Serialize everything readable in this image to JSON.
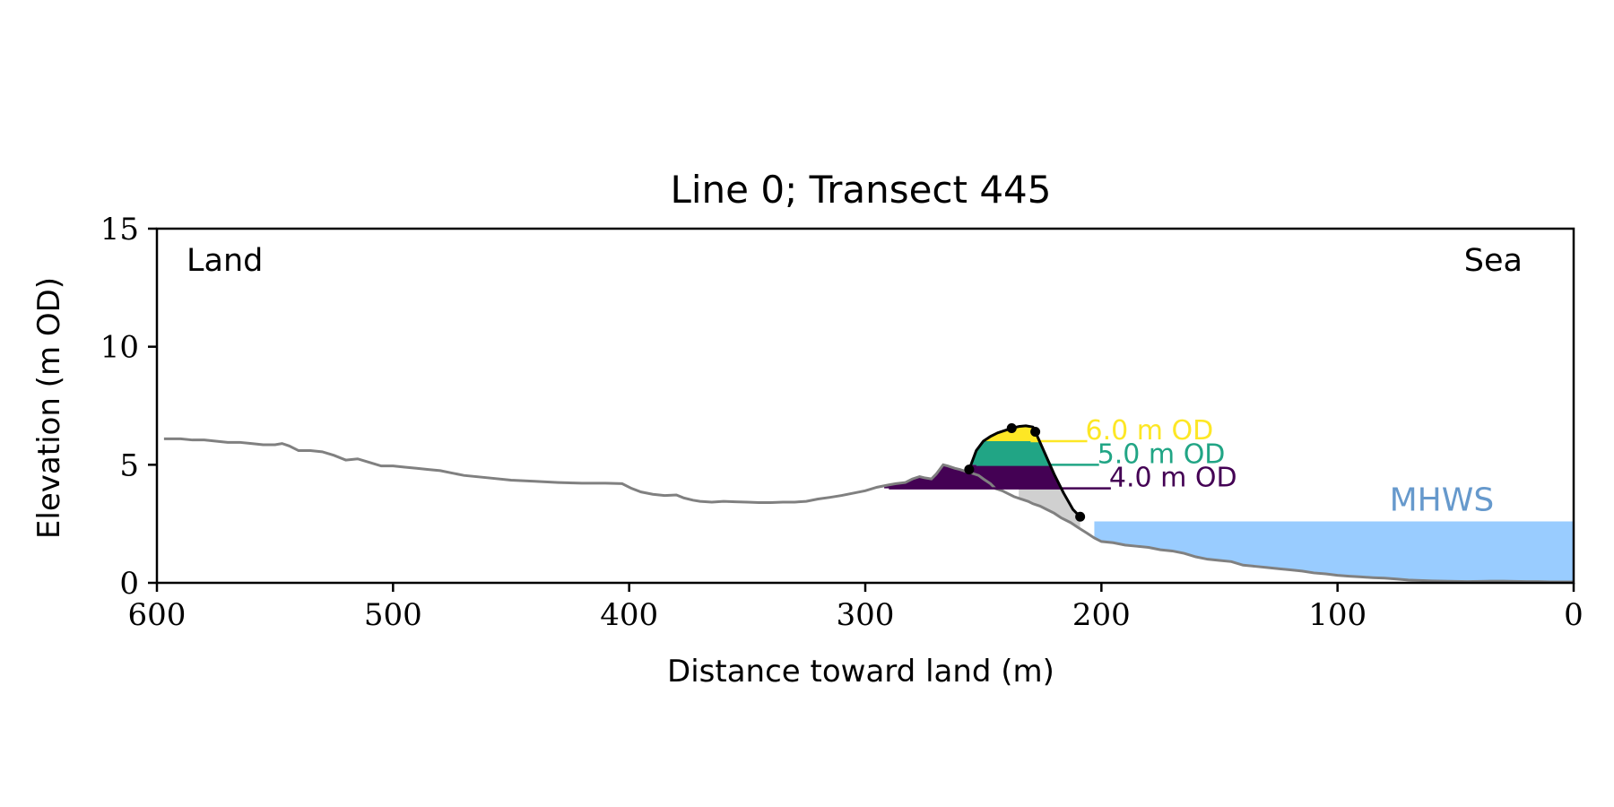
{
  "chart_data": {
    "type": "line",
    "title": "Line 0; Transect 445",
    "xlabel": "Distance toward land (m)",
    "ylabel": "Elevation (m OD)",
    "xlim": [
      600,
      0
    ],
    "ylim": [
      0,
      15
    ],
    "x_ticks": [
      600,
      500,
      400,
      300,
      200,
      100,
      0
    ],
    "y_ticks": [
      0,
      5,
      10,
      15
    ],
    "grid": false,
    "region_labels": {
      "left": "Land",
      "right": "Sea"
    },
    "colors": {
      "profile": "#808080",
      "mhws_fill": "#99ccff",
      "mhws_text": "#6699cc",
      "foreshore_fill": "#d0d0d0",
      "level_6": "#fde725",
      "level_5": "#21a585",
      "level_4": "#440154",
      "fit_line": "#000000"
    },
    "series": [
      {
        "name": "",
        "type": "profile",
        "x": [
          597,
          590,
          585,
          580,
          575,
          570,
          565,
          560,
          555,
          550,
          547,
          544,
          540,
          535,
          530,
          525,
          520,
          515,
          510,
          505,
          500,
          495,
          490,
          485,
          480,
          475,
          470,
          460,
          450,
          440,
          430,
          420,
          410,
          403,
          399,
          395,
          390,
          385,
          380,
          377,
          373,
          370,
          365,
          360,
          355,
          350,
          345,
          340,
          335,
          330,
          325,
          320,
          315,
          310,
          305,
          300,
          295,
          290,
          287,
          283,
          280,
          277,
          275,
          272,
          270,
          267,
          265,
          262,
          260,
          257,
          255,
          252,
          250,
          247,
          245,
          242,
          240,
          237,
          234,
          231,
          229,
          226,
          223,
          220,
          217,
          213,
          210,
          206,
          203,
          200,
          195,
          190,
          185,
          180,
          175,
          170,
          165,
          160,
          155,
          150,
          145,
          140,
          135,
          130,
          125,
          120,
          115,
          110,
          105,
          100,
          95,
          90,
          85,
          80,
          75,
          70,
          65,
          60,
          55,
          50,
          45,
          40,
          35,
          30,
          25,
          20,
          15,
          10,
          5,
          0
        ],
        "y": [
          6.1,
          6.1,
          6.05,
          6.05,
          6.0,
          5.95,
          5.95,
          5.9,
          5.85,
          5.85,
          5.9,
          5.8,
          5.6,
          5.6,
          5.55,
          5.4,
          5.2,
          5.25,
          5.1,
          4.95,
          4.95,
          4.9,
          4.85,
          4.8,
          4.75,
          4.65,
          4.55,
          4.45,
          4.35,
          4.3,
          4.25,
          4.22,
          4.22,
          4.2,
          4.0,
          3.85,
          3.75,
          3.7,
          3.72,
          3.6,
          3.5,
          3.45,
          3.42,
          3.45,
          3.43,
          3.42,
          3.4,
          3.4,
          3.42,
          3.42,
          3.45,
          3.55,
          3.62,
          3.7,
          3.8,
          3.9,
          4.05,
          4.15,
          4.2,
          4.25,
          4.4,
          4.5,
          4.45,
          4.4,
          4.6,
          5.0,
          4.95,
          4.85,
          4.8,
          4.7,
          4.65,
          4.55,
          4.4,
          4.2,
          4.0,
          3.9,
          3.8,
          3.65,
          3.55,
          3.45,
          3.35,
          3.25,
          3.1,
          2.95,
          2.75,
          2.55,
          2.35,
          2.1,
          1.9,
          1.75,
          1.7,
          1.6,
          1.55,
          1.5,
          1.4,
          1.35,
          1.25,
          1.1,
          1.0,
          0.95,
          0.9,
          0.75,
          0.7,
          0.65,
          0.6,
          0.55,
          0.5,
          0.42,
          0.38,
          0.32,
          0.28,
          0.25,
          0.22,
          0.2,
          0.16,
          0.12,
          0.1,
          0.08,
          0.07,
          0.06,
          0.05,
          0.06,
          0.07,
          0.07,
          0.06,
          0.05,
          0.05,
          0.04,
          0.04,
          0.04
        ]
      },
      {
        "name": "",
        "type": "fitted-profile",
        "x": [
          256,
          253,
          250,
          247,
          244,
          241,
          238,
          235,
          232,
          229,
          228,
          224,
          220,
          216,
          212,
          209
        ],
        "y": [
          4.8,
          5.6,
          6.0,
          6.2,
          6.35,
          6.45,
          6.55,
          6.62,
          6.65,
          6.6,
          6.4,
          5.5,
          4.6,
          3.8,
          3.1,
          2.8
        ],
        "points": [
          {
            "x": 256,
            "y": 4.8
          },
          {
            "x": 238,
            "y": 6.55
          },
          {
            "x": 228,
            "y": 6.4
          },
          {
            "x": 209,
            "y": 2.8
          }
        ]
      }
    ],
    "mhws": {
      "label": "MHWS",
      "level": 2.6,
      "x_from": 203,
      "x_to": 0
    },
    "levels": [
      {
        "label": "6.0 m OD",
        "value": 6.0,
        "line_x": [
          230,
          206
        ],
        "color_key": "level_6"
      },
      {
        "label": "5.0 m OD",
        "value": 5.0,
        "line_x": [
          253,
          201
        ],
        "color_key": "level_5"
      },
      {
        "label": "4.0 m OD",
        "value": 4.0,
        "line_x": [
          290,
          196
        ],
        "color_key": "level_4"
      }
    ]
  }
}
